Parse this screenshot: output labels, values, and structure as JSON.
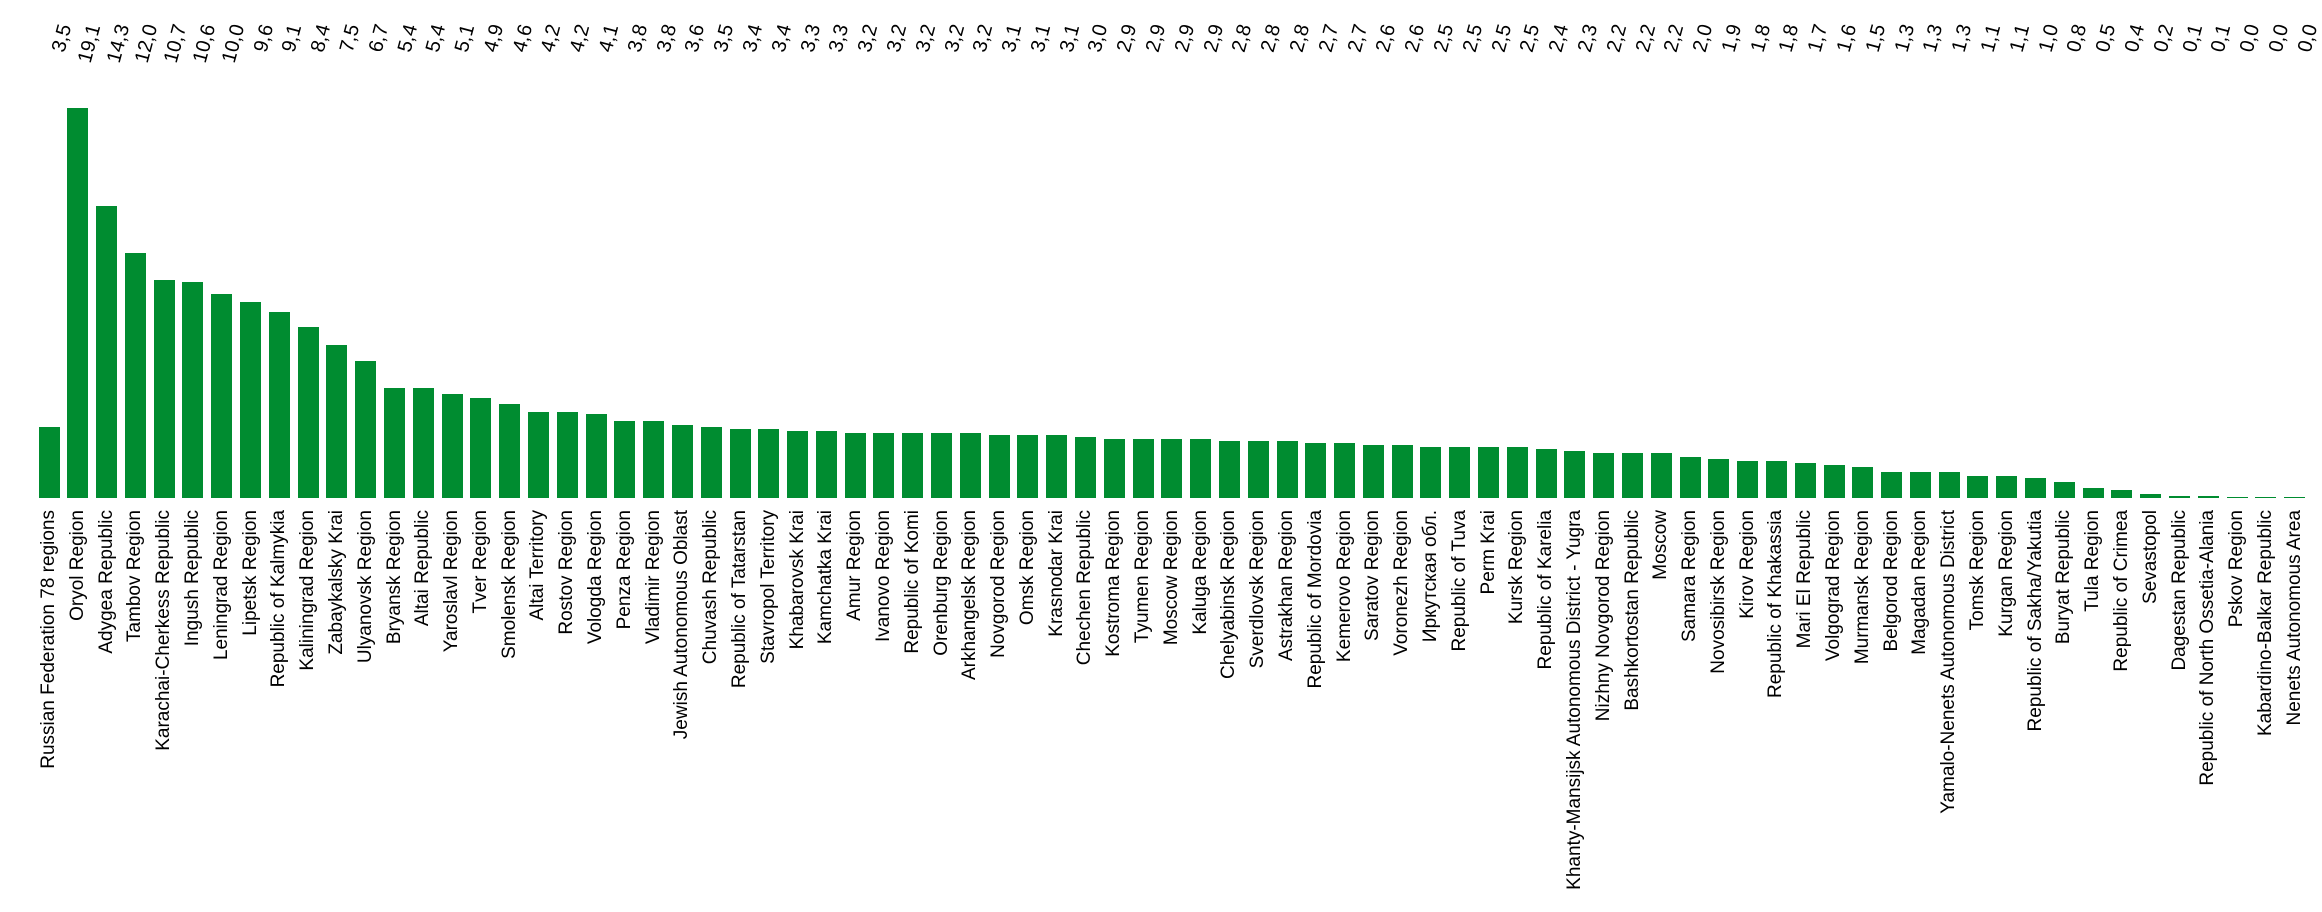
{
  "chart_data": {
    "type": "bar",
    "title": "",
    "xlabel": "",
    "ylabel": "",
    "grid": false,
    "legend": false,
    "ylim": [
      0,
      19.1
    ],
    "bar_color": "#008C30",
    "text_color": "#000000",
    "background_color": "#FFFFFF",
    "value_label_position": "top-row",
    "value_label_rotation_deg": -75,
    "category_label_rotation_deg": -90,
    "categories": [
      "Russian Federation 78 regions",
      "Oryol Region",
      "Adygea Republic",
      "Tambov Region",
      "Karachai-Cherkess Republic",
      "Ingush Republic",
      "Leningrad Region",
      "Lipetsk Region",
      "Republic of Kalmykia",
      "Kaliningrad Region",
      "Zabaykalsky Krai",
      "Ulyanovsk Region",
      "Bryansk Region",
      "Altai Republic",
      "Yaroslavl Region",
      "Tver Region",
      "Smolensk Region",
      "Altai Territory",
      "Rostov Region",
      "Vologda Region",
      "Penza Region",
      "Vladimir Region",
      "Jewish Autonomous Oblast",
      "Chuvash Republic",
      "Republic of Tatarstan",
      "Stavropol Territory",
      "Khabarovsk Krai",
      "Kamchatka Krai",
      "Amur Region",
      "Ivanovo Region",
      "Republic of Komi",
      "Orenburg Region",
      "Arkhangelsk Region",
      "Novgorod Region",
      "Omsk Region",
      "Krasnodar Krai",
      "Chechen Republic",
      "Kostroma Region",
      "Tyumen Region",
      "Moscow Region",
      "Kaluga Region",
      "Chelyabinsk Region",
      "Sverdlovsk Region",
      "Astrakhan Region",
      "Republic of Mordovia",
      "Kemerovo Region",
      "Saratov Region",
      "Voronezh Region",
      "Иркутская обл.",
      "Republic of Tuva",
      "Perm Krai",
      "Kursk Region",
      "Republic of Karelia",
      "Khanty-Mansijsk Autonomous District - Yugra",
      "Nizhny Novgorod Region",
      "Bashkortostan Republic",
      "Moscow",
      "Samara Region",
      "Novosibirsk Region",
      "Kirov Region",
      "Republic of Khakassia",
      "Mari El Republic",
      "Volgograd Region",
      "Murmansk Region",
      "Belgorod Region",
      "Magadan Region",
      "Yamalo-Nenets Autonomous District",
      "Tomsk Region",
      "Kurgan Region",
      "Republic of Sakha/Yakutia",
      "Buryat Republic",
      "Tula Region",
      "Republic of Crimea",
      "Sevastopol",
      "Dagestan Republic",
      "Republic of North Ossetia-Alania",
      "Pskov Region",
      "Kabardino-Balkar Republic",
      "Nenets Autonomous Area"
    ],
    "values": [
      3.5,
      19.1,
      14.3,
      12.0,
      10.7,
      10.6,
      10.0,
      9.6,
      9.1,
      8.4,
      7.5,
      6.7,
      5.4,
      5.4,
      5.1,
      4.9,
      4.6,
      4.2,
      4.2,
      4.1,
      3.8,
      3.8,
      3.6,
      3.5,
      3.4,
      3.4,
      3.3,
      3.3,
      3.2,
      3.2,
      3.2,
      3.2,
      3.2,
      3.1,
      3.1,
      3.1,
      3.0,
      2.9,
      2.9,
      2.9,
      2.9,
      2.8,
      2.8,
      2.8,
      2.7,
      2.7,
      2.6,
      2.6,
      2.5,
      2.5,
      2.5,
      2.5,
      2.4,
      2.3,
      2.2,
      2.2,
      2.2,
      2.0,
      1.9,
      1.8,
      1.8,
      1.7,
      1.6,
      1.5,
      1.3,
      1.3,
      1.3,
      1.1,
      1.1,
      1.0,
      0.8,
      0.5,
      0.4,
      0.2,
      0.1,
      0.1,
      0.0,
      0.0,
      0.0
    ],
    "value_labels": [
      "3,5",
      "19,1",
      "14,3",
      "12,0",
      "10,7",
      "10,6",
      "10,0",
      "9,6",
      "9,1",
      "8,4",
      "7,5",
      "6,7",
      "5,4",
      "5,4",
      "5,1",
      "4,9",
      "4,6",
      "4,2",
      "4,2",
      "4,1",
      "3,8",
      "3,8",
      "3,6",
      "3,5",
      "3,4",
      "3,4",
      "3,3",
      "3,3",
      "3,2",
      "3,2",
      "3,2",
      "3,2",
      "3,2",
      "3,1",
      "3,1",
      "3,1",
      "3,0",
      "2,9",
      "2,9",
      "2,9",
      "2,9",
      "2,8",
      "2,8",
      "2,8",
      "2,7",
      "2,7",
      "2,6",
      "2,6",
      "2,5",
      "2,5",
      "2,5",
      "2,5",
      "2,4",
      "2,3",
      "2,2",
      "2,2",
      "2,2",
      "2,0",
      "1,9",
      "1,8",
      "1,8",
      "1,7",
      "1,6",
      "1,5",
      "1,3",
      "1,3",
      "1,3",
      "1,1",
      "1,1",
      "1,0",
      "0,8",
      "0,5",
      "0,4",
      "0,2",
      "0,1",
      "0,1",
      "0,0",
      "0,0",
      "0,0"
    ]
  }
}
